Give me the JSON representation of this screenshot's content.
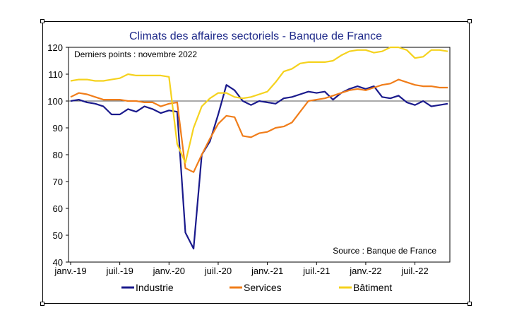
{
  "chart_data": {
    "type": "line",
    "title": "Climats des affaires sectoriels  - Banque de France",
    "note": "Derniers points : novembre 2022",
    "source": "Source : Banque de France",
    "ylim": [
      40,
      120
    ],
    "yticks": [
      40,
      50,
      60,
      70,
      80,
      90,
      100,
      110,
      120
    ],
    "x_labels": [
      "janv.-19",
      "juil.-19",
      "janv.-20",
      "juil.-20",
      "janv.-21",
      "juil.-21",
      "janv.-22",
      "juil.-22"
    ],
    "reference_line": 100,
    "grid": "horizontal reference at 100",
    "legend_position": "bottom",
    "x": [
      "2019-01",
      "2019-02",
      "2019-03",
      "2019-04",
      "2019-05",
      "2019-06",
      "2019-07",
      "2019-08",
      "2019-09",
      "2019-10",
      "2019-11",
      "2019-12",
      "2020-01",
      "2020-02",
      "2020-03",
      "2020-04",
      "2020-05",
      "2020-06",
      "2020-07",
      "2020-08",
      "2020-09",
      "2020-10",
      "2020-11",
      "2020-12",
      "2021-01",
      "2021-02",
      "2021-03",
      "2021-04",
      "2021-05",
      "2021-06",
      "2021-07",
      "2021-08",
      "2021-09",
      "2021-10",
      "2021-11",
      "2021-12",
      "2022-01",
      "2022-02",
      "2022-03",
      "2022-04",
      "2022-05",
      "2022-06",
      "2022-07",
      "2022-08",
      "2022-09",
      "2022-10",
      "2022-11"
    ],
    "series": [
      {
        "name": "Industrie",
        "color": "#1a1a8c",
        "values": [
          100,
          100.5,
          99.5,
          99,
          98,
          95,
          95,
          97,
          96,
          98,
          97,
          95.5,
          96.5,
          96,
          51,
          45,
          80,
          85,
          95,
          106,
          104,
          100,
          98.5,
          100,
          99.5,
          99,
          101,
          101.5,
          102.5,
          103.5,
          103,
          103.5,
          100.5,
          103,
          104.5,
          105.5,
          104.5,
          105.5,
          101.5,
          101,
          102,
          99.5,
          98.5,
          100,
          98,
          98.5,
          99
        ]
      },
      {
        "name": "Services",
        "color": "#f07d1a",
        "values": [
          101.5,
          103,
          102.5,
          101.5,
          100.5,
          100.5,
          100.5,
          100,
          100,
          99.5,
          99.5,
          98,
          99,
          99.5,
          75,
          73.5,
          80,
          86,
          91.5,
          94.5,
          94,
          87,
          86.5,
          88,
          88.5,
          90,
          90.5,
          92,
          96,
          100,
          100.5,
          101,
          102,
          103,
          104,
          104.5,
          104,
          105,
          106,
          106.5,
          108,
          107,
          106,
          105.5,
          105.5,
          105,
          105
        ]
      },
      {
        "name": "Bâtiment",
        "color": "#f5d21e",
        "values": [
          107.5,
          108,
          108,
          107.5,
          107.5,
          108,
          108.5,
          110,
          109.5,
          109.5,
          109.5,
          109.5,
          109,
          84,
          77,
          90,
          98,
          101,
          103,
          103,
          101.5,
          101,
          101.5,
          102.5,
          103.5,
          107,
          111,
          112,
          114,
          114.5,
          114.5,
          114.5,
          115,
          117,
          118.5,
          119,
          119,
          118,
          118.5,
          120,
          120,
          119,
          116,
          116.5,
          119,
          119,
          118.5
        ]
      }
    ]
  }
}
